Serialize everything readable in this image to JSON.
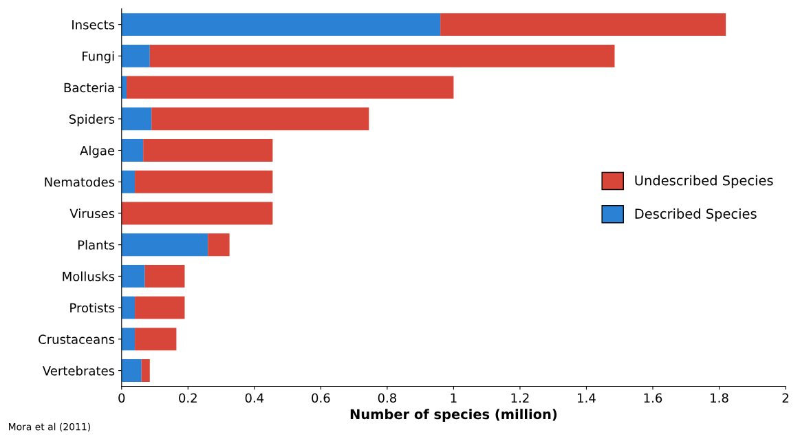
{
  "chart_data": {
    "type": "bar",
    "orientation": "horizontal",
    "stacked": true,
    "xlabel": "Number of species (million)",
    "categories": [
      "Insects",
      "Fungi",
      "Bacteria",
      "Spiders",
      "Algae",
      "Nematodes",
      "Viruses",
      "Plants",
      "Mollusks",
      "Protists",
      "Crustaceans",
      "Vertebrates"
    ],
    "series": [
      {
        "name": "Described Species",
        "color": "#2b82d4",
        "values": [
          0.96,
          0.085,
          0.015,
          0.09,
          0.065,
          0.04,
          0,
          0.26,
          0.07,
          0.04,
          0.04,
          0.06
        ]
      },
      {
        "name": "Undescribed Species",
        "color": "#d8463a",
        "values": [
          0.86,
          1.4,
          0.985,
          0.655,
          0.39,
          0.415,
          0.455,
          0.065,
          0.12,
          0.15,
          0.125,
          0.025
        ]
      }
    ],
    "xlim": [
      0,
      2
    ],
    "xticks": [
      0,
      0.2,
      0.4,
      0.6,
      0.8,
      1,
      1.2,
      1.4,
      1.6,
      1.8,
      2
    ],
    "legend": "center right",
    "grid": false,
    "annotations": [
      "Mora et al (2011)"
    ]
  }
}
